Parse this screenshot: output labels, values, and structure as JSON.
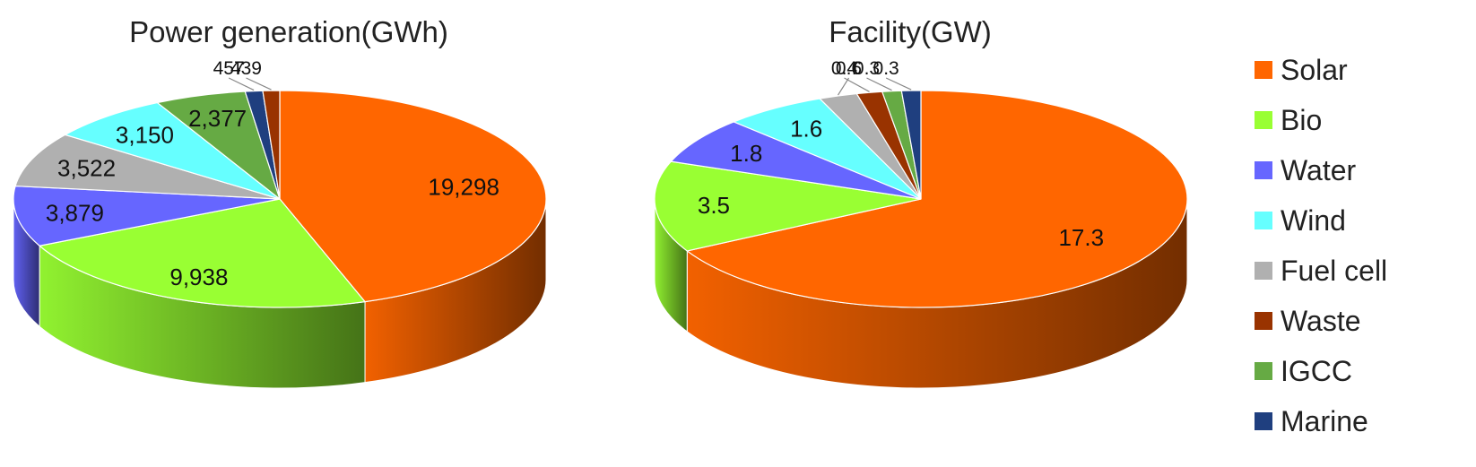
{
  "chart_data": [
    {
      "type": "pie",
      "title": "Power generation(GWh)",
      "categories": [
        "Solar",
        "Bio",
        "Water",
        "Wind",
        "Fuel cell",
        "Waste",
        "IGCC",
        "Marine"
      ],
      "values": [
        19298,
        9938,
        3879,
        3150,
        3522,
        439,
        2377,
        457
      ],
      "labels": [
        "19,298",
        "9,938",
        "3,879",
        "3,150",
        "3,522",
        "439",
        "2,377",
        "457"
      ],
      "slice_order": [
        "Solar",
        "Bio",
        "Water",
        "Fuel cell",
        "Wind",
        "IGCC",
        "Marine",
        "Waste"
      ]
    },
    {
      "type": "pie",
      "title": "Facility(GW)",
      "categories": [
        "Solar",
        "Bio",
        "Water",
        "Wind",
        "Fuel cell",
        "Waste",
        "IGCC",
        "Marine"
      ],
      "values": [
        17.3,
        3.5,
        1.8,
        1.6,
        0.6,
        0.4,
        0.3,
        0.3
      ],
      "labels": [
        "17.3",
        "3.5",
        "1.8",
        "1.6",
        "0.6",
        "0.4",
        "0.3",
        "0.3"
      ],
      "slice_order": [
        "Solar",
        "Bio",
        "Water",
        "Wind",
        "Fuel cell",
        "Waste",
        "IGCC",
        "Marine"
      ]
    }
  ],
  "legend": {
    "placement": "right",
    "items": [
      {
        "name": "Solar",
        "color": "#FF6600"
      },
      {
        "name": "Bio",
        "color": "#99FF33"
      },
      {
        "name": "Water",
        "color": "#6666FF"
      },
      {
        "name": "Wind",
        "color": "#66FFFF"
      },
      {
        "name": "Fuel cell",
        "color": "#B0B0B0"
      },
      {
        "name": "Waste",
        "color": "#993300"
      },
      {
        "name": "IGCC",
        "color": "#66AA44"
      },
      {
        "name": "Marine",
        "color": "#1F3F7F"
      }
    ]
  }
}
